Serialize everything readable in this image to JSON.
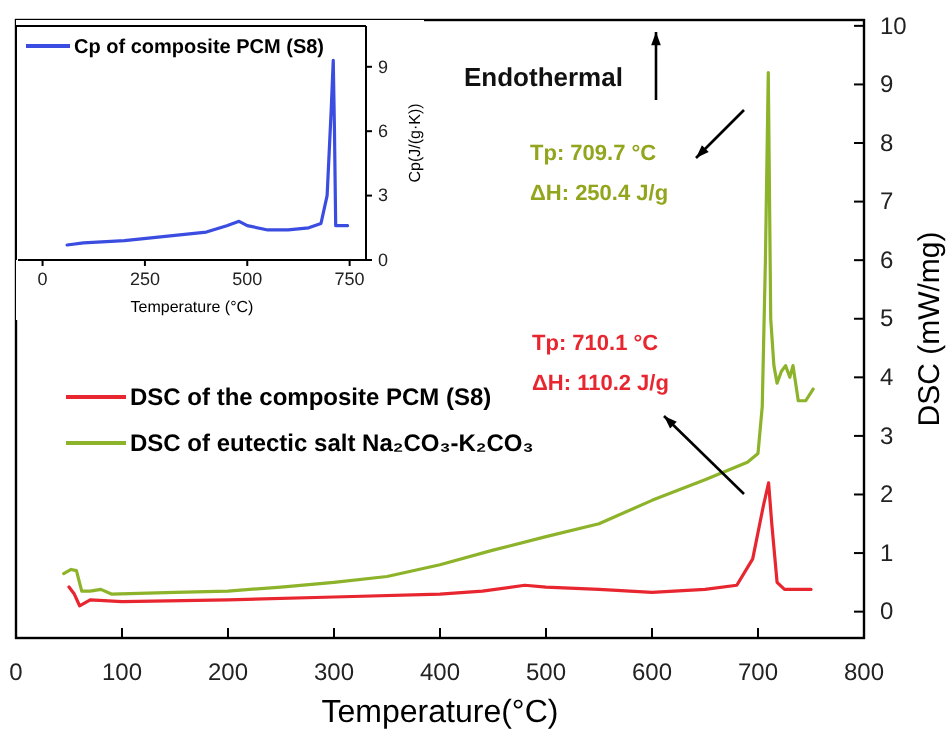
{
  "chart_data": [
    {
      "type": "line",
      "xlabel": "Temperature(°C)",
      "ylabel": "DSC (mW/mg)",
      "xlim": [
        0,
        800
      ],
      "ylim": [
        -0.45,
        10.1
      ],
      "xticks": [
        0,
        100,
        200,
        300,
        400,
        500,
        600,
        700,
        800
      ],
      "yticks": [
        0,
        1,
        2,
        3,
        4,
        5,
        6,
        7,
        8,
        9,
        10
      ],
      "grid": false,
      "legend": "center left",
      "line_style": "solid",
      "annotations": [
        "Endothermal",
        "Tp: 709.7 °C",
        "ΔH: 250.4 J/g",
        "Tp: 710.1 °C",
        "ΔH: 110.2 J/g"
      ],
      "series": [
        {
          "name": "DSC  of the composite PCM (S8)",
          "color": "#e8262f",
          "x": [
            50,
            55,
            60,
            70,
            100,
            200,
            300,
            400,
            440,
            480,
            500,
            550,
            600,
            650,
            680,
            695,
            705,
            710,
            713,
            718,
            725,
            750
          ],
          "values": [
            0.42,
            0.3,
            0.1,
            0.2,
            0.17,
            0.2,
            0.25,
            0.3,
            0.35,
            0.45,
            0.42,
            0.38,
            0.33,
            0.38,
            0.45,
            0.9,
            1.8,
            2.2,
            1.5,
            0.5,
            0.38,
            0.38
          ]
        },
        {
          "name": "DSC of eutectic salt Na₂CO₃-K₂CO₃",
          "color": "#8db32a",
          "x": [
            45,
            52,
            57,
            62,
            70,
            80,
            90,
            150,
            200,
            250,
            300,
            350,
            400,
            450,
            500,
            550,
            600,
            650,
            690,
            700,
            704,
            707,
            709.7,
            712,
            715,
            718,
            722,
            726,
            730,
            733,
            738,
            745,
            752
          ],
          "values": [
            0.65,
            0.72,
            0.7,
            0.35,
            0.35,
            0.38,
            0.3,
            0.33,
            0.35,
            0.42,
            0.5,
            0.6,
            0.8,
            1.05,
            1.28,
            1.5,
            1.9,
            2.25,
            2.55,
            2.7,
            3.5,
            6,
            9.2,
            5,
            4.2,
            3.9,
            4.1,
            4.2,
            4.0,
            4.2,
            3.6,
            3.6,
            3.8
          ]
        }
      ]
    },
    {
      "type": "line",
      "xlabel": "Temperature (°C)",
      "ylabel": "Cp(J/(g·K))",
      "xlim": [
        -60,
        790
      ],
      "ylim": [
        0,
        10.9
      ],
      "xticks": [
        0,
        250,
        500,
        750
      ],
      "yticks": [
        0,
        3,
        6,
        9
      ],
      "grid": false,
      "legend": "top left",
      "line_style": "solid",
      "series": [
        {
          "name": "Cp of composite PCM (S8)",
          "color": "#3a4de0",
          "x": [
            60,
            100,
            200,
            300,
            400,
            450,
            480,
            500,
            550,
            600,
            650,
            680,
            695,
            705,
            710,
            713,
            716,
            730,
            745
          ],
          "values": [
            0.7,
            0.8,
            0.9,
            1.1,
            1.3,
            1.6,
            1.8,
            1.6,
            1.4,
            1.4,
            1.5,
            1.7,
            3,
            7,
            9.3,
            6,
            1.6,
            1.6,
            1.6
          ]
        }
      ]
    }
  ]
}
